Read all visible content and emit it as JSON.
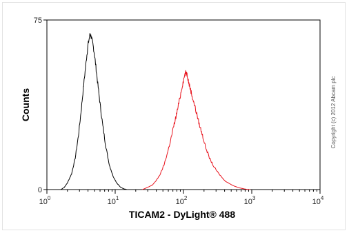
{
  "chart_data": {
    "type": "line",
    "xlabel": "TICAM2 - DyLight® 488",
    "ylabel": "Counts",
    "xscale": "log",
    "xlim": [
      1,
      10000
    ],
    "ylim": [
      0,
      75
    ],
    "x_ticks": [
      {
        "base": "10",
        "exp": "0"
      },
      {
        "base": "10",
        "exp": "1"
      },
      {
        "base": "10",
        "exp": "2"
      },
      {
        "base": "10",
        "exp": "3"
      },
      {
        "base": "10",
        "exp": "4"
      }
    ],
    "y_ticks": [
      "0",
      "75"
    ],
    "grid": false,
    "annotation": "Copyright (c) 2012 Abcam plc",
    "series": [
      {
        "color": "#000000",
        "x": [
          1.6,
          1.8,
          2.0,
          2.3,
          2.6,
          2.9,
          3.2,
          3.5,
          3.8,
          4.0,
          4.3,
          4.5,
          4.8,
          5.1,
          5.5,
          6.0,
          6.6,
          7.3,
          8.2,
          9.3,
          10.5,
          12.0,
          13.5,
          15.0
        ],
        "y": [
          0,
          1,
          3,
          7,
          14,
          24,
          36,
          48,
          58,
          64,
          69,
          67,
          63,
          57,
          48,
          38,
          28,
          19,
          11,
          6,
          3,
          1,
          0.3,
          0
        ]
      },
      {
        "color": "#e8141e",
        "x": [
          25,
          30,
          35,
          40,
          46,
          52,
          58,
          65,
          72,
          80,
          88,
          96,
          105,
          110,
          115,
          120,
          130,
          140,
          155,
          170,
          190,
          210,
          240,
          280,
          330,
          400,
          480,
          560,
          650,
          750,
          850,
          950
        ],
        "y": [
          0,
          1,
          2,
          4,
          7,
          11,
          16,
          22,
          28,
          34,
          40,
          46,
          51,
          52,
          50,
          47,
          43,
          39,
          34,
          29,
          24,
          19,
          14,
          10,
          7,
          4,
          2.5,
          1.5,
          0.8,
          0.4,
          0.1,
          0
        ]
      }
    ]
  }
}
